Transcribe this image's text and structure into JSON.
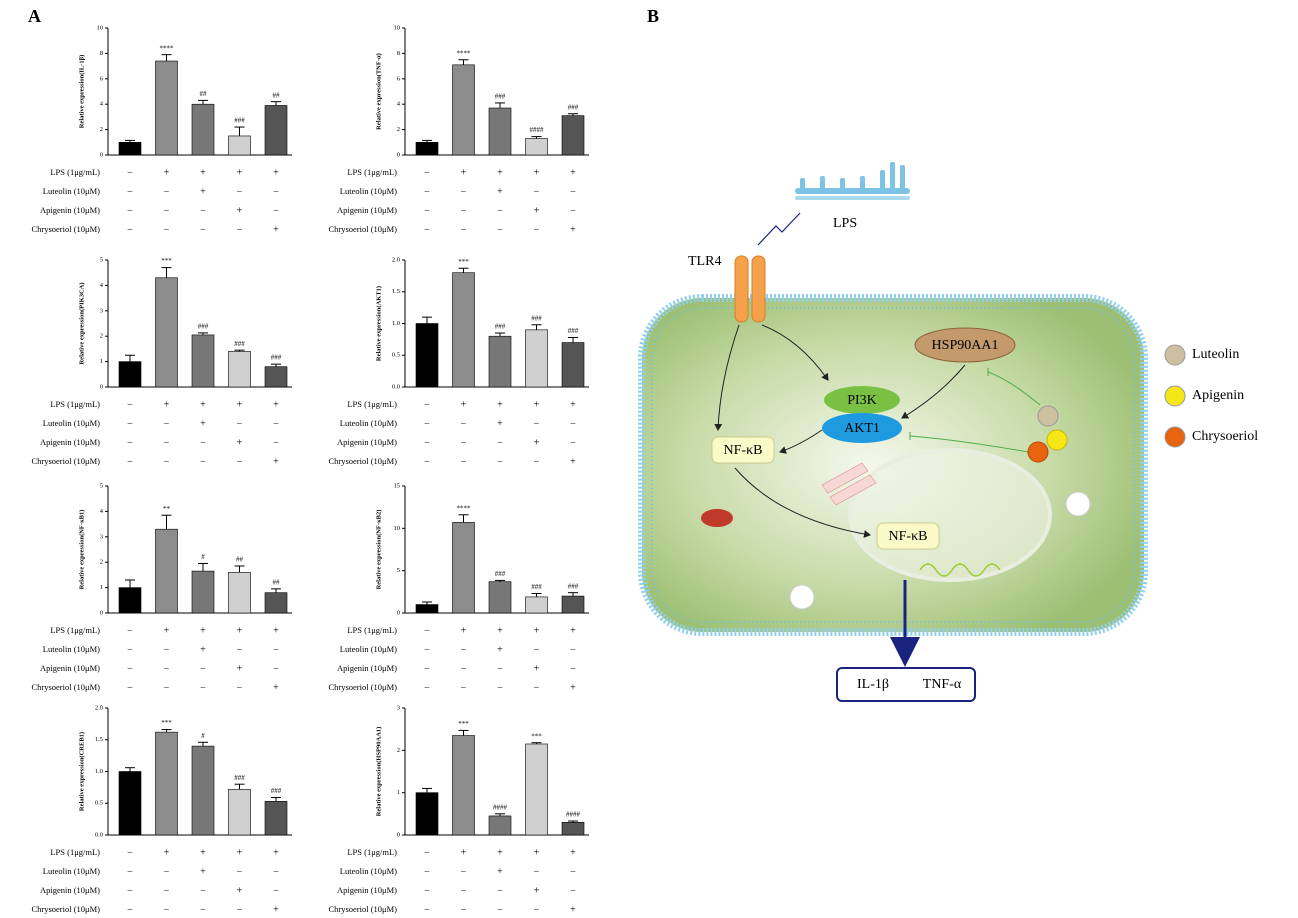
{
  "panel_labels": [
    "A",
    "B"
  ],
  "chart_data": [
    {
      "type": "bar",
      "ylabel": "Relative expression(IL-1β)",
      "ylim": [
        0,
        10
      ],
      "yticks": [
        0,
        2,
        4,
        6,
        8,
        10
      ],
      "values": [
        1,
        7.4,
        4,
        1.5,
        3.9
      ],
      "errors": [
        0.15,
        0.5,
        0.3,
        0.7,
        0.3
      ],
      "annotations": [
        null,
        "****",
        "##",
        "###",
        "##"
      ],
      "colors": [
        "#000000",
        "#8c8c8c",
        "#777777",
        "#d0d0d0",
        "#555555"
      ],
      "treatments": [
        {
          "label": "LPS (1μg/mL)",
          "signs": [
            "−",
            "+",
            "+",
            "+",
            "+"
          ]
        },
        {
          "label": "Luteolin (10μM)",
          "signs": [
            "−",
            "−",
            "+",
            "−",
            "−"
          ]
        },
        {
          "label": "Apigenin (10μM)",
          "signs": [
            "−",
            "−",
            "−",
            "+",
            "−"
          ]
        },
        {
          "label": "Chrysoeriol (10μM)",
          "signs": [
            "−",
            "−",
            "−",
            "−",
            "+"
          ]
        }
      ]
    },
    {
      "type": "bar",
      "ylabel": "Relative expression(TNF-α)",
      "ylim": [
        0,
        10
      ],
      "yticks": [
        0,
        2,
        4,
        6,
        8,
        10
      ],
      "values": [
        1,
        7.1,
        3.7,
        1.3,
        3.1
      ],
      "errors": [
        0.15,
        0.4,
        0.4,
        0.15,
        0.15
      ],
      "annotations": [
        null,
        "****",
        "###",
        "####",
        "###"
      ],
      "colors": [
        "#000000",
        "#8c8c8c",
        "#777777",
        "#d0d0d0",
        "#555555"
      ],
      "treatments": [
        {
          "label": "LPS (1μg/mL)",
          "signs": [
            "−",
            "+",
            "+",
            "+",
            "+"
          ]
        },
        {
          "label": "Luteolin (10μM)",
          "signs": [
            "−",
            "−",
            "+",
            "−",
            "−"
          ]
        },
        {
          "label": "Apigenin (10μM)",
          "signs": [
            "−",
            "−",
            "−",
            "+",
            "−"
          ]
        },
        {
          "label": "Chrysoeriol (10μM)",
          "signs": [
            "−",
            "−",
            "−",
            "−",
            "+"
          ]
        }
      ]
    },
    {
      "type": "bar",
      "ylabel": "Relative expression(PIK3CA)",
      "ylim": [
        0,
        5
      ],
      "yticks": [
        0,
        1,
        2,
        3,
        4,
        5
      ],
      "values": [
        1,
        4.3,
        2.05,
        1.4,
        0.8
      ],
      "errors": [
        0.25,
        0.4,
        0.08,
        0.05,
        0.1
      ],
      "annotations": [
        null,
        "***",
        "###",
        "###",
        "###"
      ],
      "colors": [
        "#000000",
        "#8c8c8c",
        "#777777",
        "#d0d0d0",
        "#555555"
      ],
      "treatments": [
        {
          "label": "LPS (1μg/mL)",
          "signs": [
            "−",
            "+",
            "+",
            "+",
            "+"
          ]
        },
        {
          "label": "Luteolin (10μM)",
          "signs": [
            "−",
            "−",
            "+",
            "−",
            "−"
          ]
        },
        {
          "label": "Apigenin (10μM)",
          "signs": [
            "−",
            "−",
            "−",
            "+",
            "−"
          ]
        },
        {
          "label": "Chrysoeriol (10μM)",
          "signs": [
            "−",
            "−",
            "−",
            "−",
            "+"
          ]
        }
      ]
    },
    {
      "type": "bar",
      "ylabel": "Relative expression(AKT1)",
      "ylim": [
        0,
        2
      ],
      "yticks": [
        {
          "value": 0,
          "label": "0.0"
        },
        {
          "value": 0.5,
          "label": "0.5"
        },
        {
          "value": 1,
          "label": "1.0"
        },
        {
          "value": 1.5,
          "label": "1.5"
        },
        {
          "value": 2,
          "label": "2.0"
        }
      ],
      "values": [
        1,
        1.8,
        0.8,
        0.9,
        0.7
      ],
      "errors": [
        0.1,
        0.07,
        0.05,
        0.08,
        0.08
      ],
      "annotations": [
        null,
        "***",
        "###",
        "###",
        "###"
      ],
      "colors": [
        "#000000",
        "#8c8c8c",
        "#777777",
        "#d0d0d0",
        "#555555"
      ],
      "treatments": [
        {
          "label": "LPS (1μg/mL)",
          "signs": [
            "−",
            "+",
            "+",
            "+",
            "+"
          ]
        },
        {
          "label": "Luteolin (10μM)",
          "signs": [
            "−",
            "−",
            "+",
            "−",
            "−"
          ]
        },
        {
          "label": "Apigenin (10μM)",
          "signs": [
            "−",
            "−",
            "−",
            "+",
            "−"
          ]
        },
        {
          "label": "Chrysoeriol (10μM)",
          "signs": [
            "−",
            "−",
            "−",
            "−",
            "+"
          ]
        }
      ]
    },
    {
      "type": "bar",
      "ylabel": "Relative expression(NF-κB1)",
      "ylim": [
        0,
        5
      ],
      "yticks": [
        0,
        1,
        2,
        3,
        4,
        5
      ],
      "values": [
        1,
        3.3,
        1.65,
        1.6,
        0.8
      ],
      "errors": [
        0.3,
        0.55,
        0.3,
        0.25,
        0.15
      ],
      "annotations": [
        null,
        "**",
        "#",
        "##",
        "##"
      ],
      "colors": [
        "#000000",
        "#8c8c8c",
        "#777777",
        "#d0d0d0",
        "#555555"
      ],
      "treatments": [
        {
          "label": "LPS (1μg/mL)",
          "signs": [
            "−",
            "+",
            "+",
            "+",
            "+"
          ]
        },
        {
          "label": "Luteolin (10μM)",
          "signs": [
            "−",
            "−",
            "+",
            "−",
            "−"
          ]
        },
        {
          "label": "Apigenin (10μM)",
          "signs": [
            "−",
            "−",
            "−",
            "+",
            "−"
          ]
        },
        {
          "label": "Chrysoeriol (10μM)",
          "signs": [
            "−",
            "−",
            "−",
            "−",
            "+"
          ]
        }
      ]
    },
    {
      "type": "bar",
      "ylabel": "Relative expression(NF-κB2)",
      "ylim": [
        0,
        15
      ],
      "yticks": [
        0,
        5,
        10,
        15
      ],
      "values": [
        1,
        10.7,
        3.7,
        1.9,
        2
      ],
      "errors": [
        0.3,
        0.9,
        0.15,
        0.4,
        0.4
      ],
      "annotations": [
        null,
        "****",
        "###",
        "###",
        "###"
      ],
      "colors": [
        "#000000",
        "#8c8c8c",
        "#777777",
        "#d0d0d0",
        "#555555"
      ],
      "treatments": [
        {
          "label": "LPS (1μg/mL)",
          "signs": [
            "−",
            "+",
            "+",
            "+",
            "+"
          ]
        },
        {
          "label": "Luteolin (10μM)",
          "signs": [
            "−",
            "−",
            "+",
            "−",
            "−"
          ]
        },
        {
          "label": "Apigenin (10μM)",
          "signs": [
            "−",
            "−",
            "−",
            "+",
            "−"
          ]
        },
        {
          "label": "Chrysoeriol (10μM)",
          "signs": [
            "−",
            "−",
            "−",
            "−",
            "+"
          ]
        }
      ]
    },
    {
      "type": "bar",
      "ylabel": "Relative expression(CREB1)",
      "ylim": [
        0,
        2
      ],
      "yticks": [
        {
          "value": 0,
          "label": "0.0"
        },
        {
          "value": 0.5,
          "label": "0.5"
        },
        {
          "value": 1,
          "label": "1.0"
        },
        {
          "value": 1.5,
          "label": "1.5"
        },
        {
          "value": 2,
          "label": "2.0"
        }
      ],
      "values": [
        1,
        1.62,
        1.4,
        0.72,
        0.53
      ],
      "errors": [
        0.06,
        0.04,
        0.06,
        0.08,
        0.06
      ],
      "annotations": [
        null,
        "***",
        "#",
        "###",
        "###"
      ],
      "colors": [
        "#000000",
        "#8c8c8c",
        "#777777",
        "#d0d0d0",
        "#555555"
      ],
      "treatments": [
        {
          "label": "LPS (1μg/mL)",
          "signs": [
            "−",
            "+",
            "+",
            "+",
            "+"
          ]
        },
        {
          "label": "Luteolin (10μM)",
          "signs": [
            "−",
            "−",
            "+",
            "−",
            "−"
          ]
        },
        {
          "label": "Apigenin (10μM)",
          "signs": [
            "−",
            "−",
            "−",
            "+",
            "−"
          ]
        },
        {
          "label": "Chrysoeriol (10μM)",
          "signs": [
            "−",
            "−",
            "−",
            "−",
            "+"
          ]
        }
      ]
    },
    {
      "type": "bar",
      "ylabel": "Relative expression(HSP90AA1)",
      "ylim": [
        0,
        3
      ],
      "yticks": [
        0,
        1,
        2,
        3
      ],
      "values": [
        1,
        2.35,
        0.45,
        2.15,
        0.3
      ],
      "errors": [
        0.1,
        0.12,
        0.05,
        0.03,
        0.03
      ],
      "annotations": [
        null,
        "***",
        "####",
        "***",
        "####"
      ],
      "colors": [
        "#000000",
        "#8c8c8c",
        "#777777",
        "#d0d0d0",
        "#555555"
      ],
      "treatments": [
        {
          "label": "LPS (1μg/mL)",
          "signs": [
            "−",
            "+",
            "+",
            "+",
            "+"
          ]
        },
        {
          "label": "Luteolin (10μM)",
          "signs": [
            "−",
            "−",
            "+",
            "−",
            "−"
          ]
        },
        {
          "label": "Apigenin (10μM)",
          "signs": [
            "−",
            "−",
            "−",
            "+",
            "−"
          ]
        },
        {
          "label": "Chrysoeriol (10μM)",
          "signs": [
            "−",
            "−",
            "−",
            "−",
            "+"
          ]
        }
      ]
    }
  ],
  "diagram": {
    "lps": "LPS",
    "tlr4": "TLR4",
    "hsp90aa1": "HSP90AA1",
    "pi3k": "PI3K",
    "akt1": "AKT1",
    "nfkb_cytoplasm": "NF-κB",
    "nfkb_nucleus": "NF-κB",
    "compounds": [
      {
        "label": "Luteolin",
        "color": "#cdbf9f"
      },
      {
        "label": "Apigenin",
        "color": "#f5e616"
      },
      {
        "label": "Chrysoeriol",
        "color": "#e8640f"
      }
    ],
    "outputs": [
      "IL-1β",
      "TNF-α"
    ]
  }
}
